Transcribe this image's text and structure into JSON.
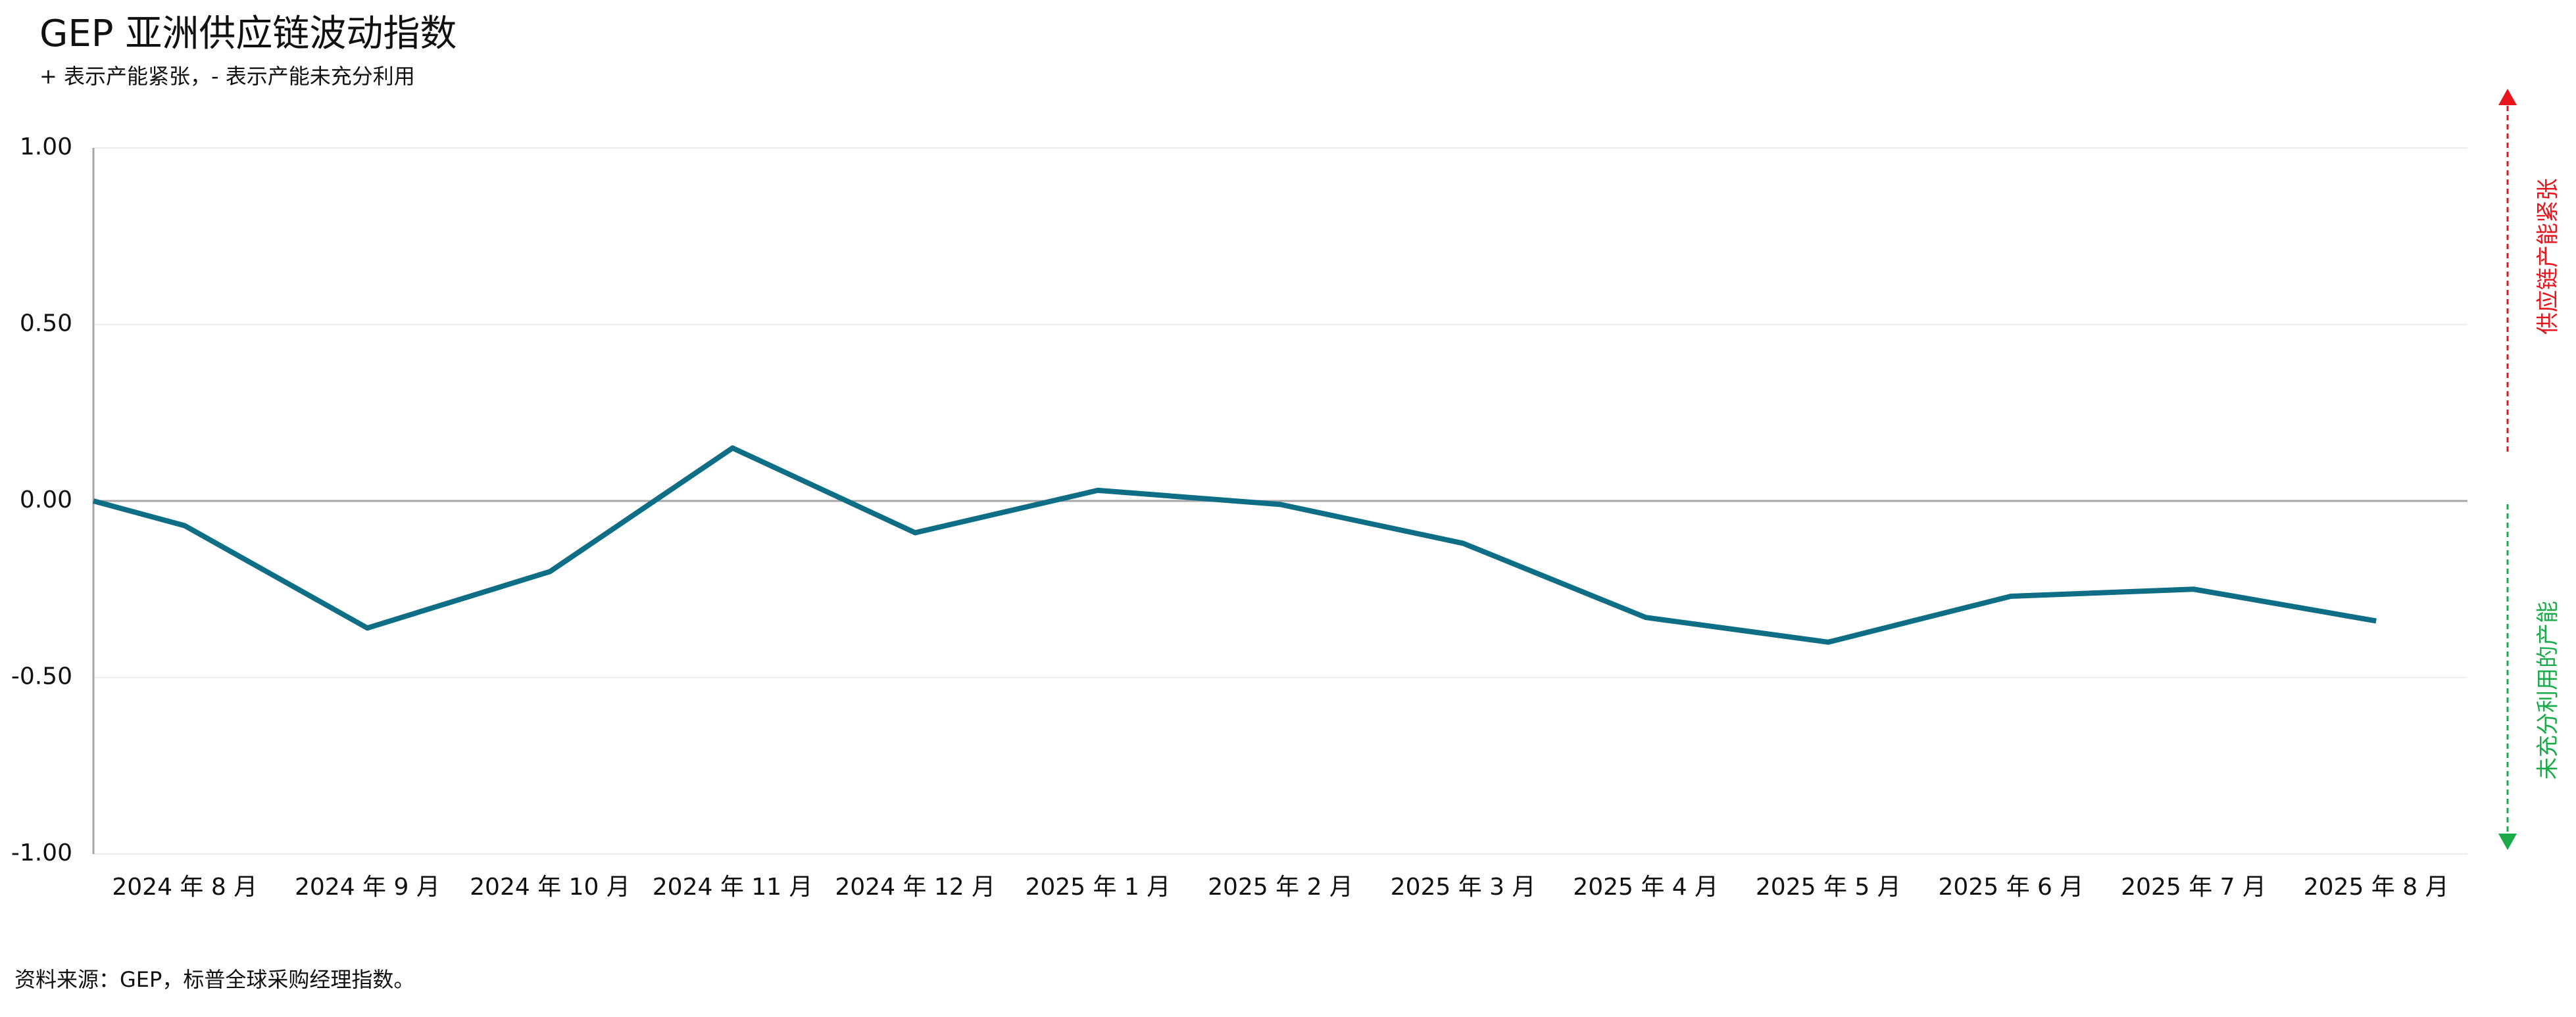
{
  "chart_data": {
    "type": "line",
    "title": "GEP 亚洲供应链波动指数",
    "subtitle": "+ 表示产能紧张，- 表示产能未充分利用",
    "categories": [
      null,
      "2024 年 8 月",
      "2024 年 9 月",
      "2024 年 10 月",
      "2024 年 11 月",
      "2024 年 12 月",
      "2025 年 1 月",
      "2025 年 2 月",
      "2025 年 3 月",
      "2025 年 4 月",
      "2025 年 5 月",
      "2025 年 6 月",
      "2025 年 7 月",
      "2025 年 8 月"
    ],
    "series": [
      {
        "name": "GEP 亚洲供应链波动指数",
        "color": "#0e6e85",
        "values": [
          0.0,
          -0.07,
          -0.36,
          -0.2,
          0.15,
          -0.09,
          0.03,
          -0.01,
          -0.12,
          -0.33,
          -0.4,
          -0.27,
          -0.25,
          -0.34
        ]
      }
    ],
    "ylim": [
      -1,
      1
    ],
    "yticks": [
      {
        "value": 1,
        "label": "1.00"
      },
      {
        "value": 0.5,
        "label": "0.50"
      },
      {
        "value": 0,
        "label": "0.00"
      },
      {
        "value": -0.5,
        "label": "-0.50"
      },
      {
        "value": -1,
        "label": "-1.00"
      }
    ],
    "grid": true,
    "annotations": [
      {
        "text": "供应链产能紧张",
        "color": "#e8141b"
      },
      {
        "text": "未充分利用的产能",
        "color": "#1aaa4a"
      }
    ],
    "source": "资料来源：GEP，标普全球采购经理指数。"
  }
}
